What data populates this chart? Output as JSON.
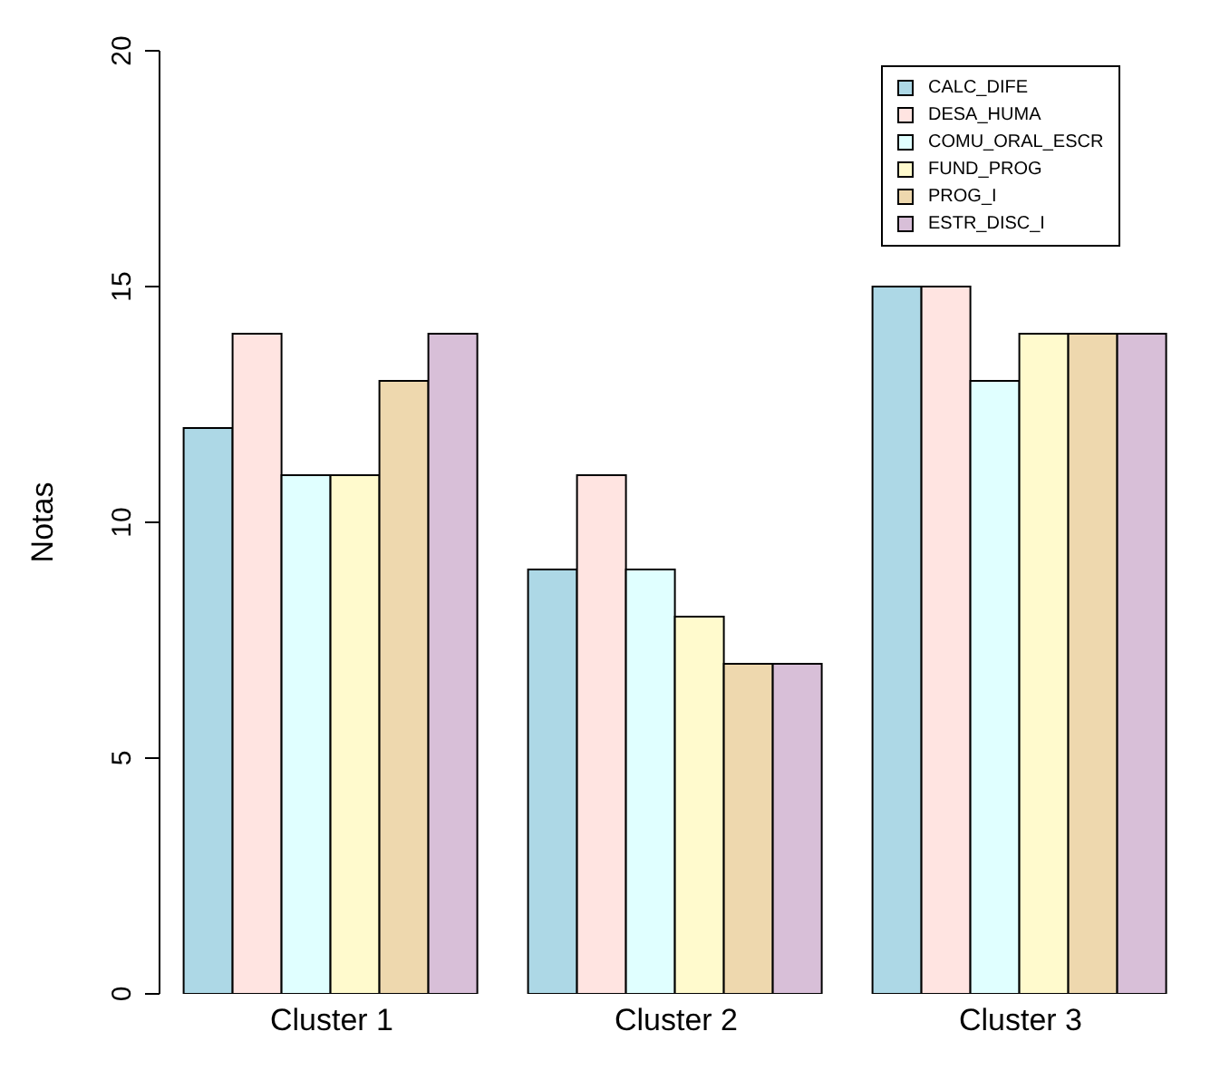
{
  "chart_data": {
    "type": "bar",
    "ylabel": "Notas",
    "categories": [
      "Cluster 1",
      "Cluster 2",
      "Cluster 3"
    ],
    "series": [
      {
        "name": "CALC_DIFE",
        "color": "#add8e6",
        "values": [
          12,
          9,
          15
        ]
      },
      {
        "name": "DESA_HUMA",
        "color": "#ffe4e1",
        "values": [
          14,
          11,
          15
        ]
      },
      {
        "name": "COMU_ORAL_ESCR",
        "color": "#e0ffff",
        "values": [
          11,
          9,
          13
        ]
      },
      {
        "name": "FUND_PROG",
        "color": "#fffacd",
        "values": [
          11,
          8,
          14
        ]
      },
      {
        "name": "PROG_I",
        "color": "#eed8ae",
        "values": [
          13,
          7,
          14
        ]
      },
      {
        "name": "ESTR_DISC_I",
        "color": "#d8bfd8",
        "values": [
          14,
          7,
          14
        ]
      }
    ],
    "ylim": [
      0,
      20
    ],
    "yticks": [
      0,
      5,
      10,
      15,
      20
    ],
    "grid": false,
    "legend": "top right"
  }
}
